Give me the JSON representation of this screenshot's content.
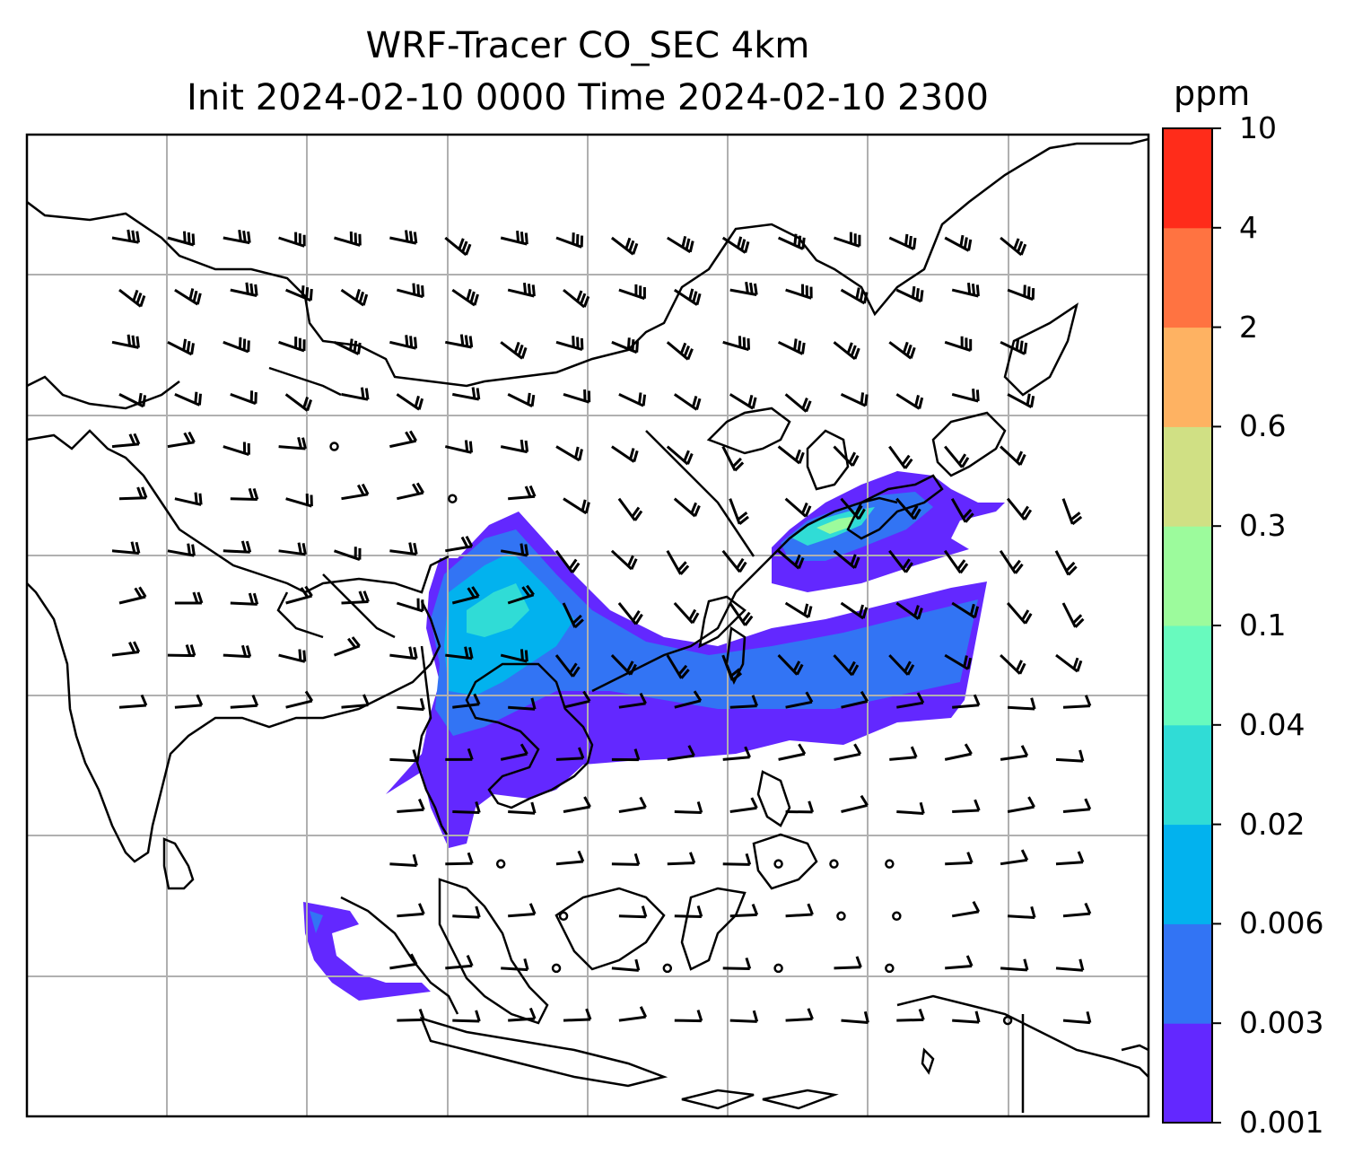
{
  "title": {
    "line1": "WRF-Tracer CO_SEC 4km",
    "line2": "Init 2024-02-10 0000 Time 2024-02-10 2300"
  },
  "colorbar": {
    "unit": "ppm",
    "levels": [
      "0.001",
      "0.003",
      "0.006",
      "0.02",
      "0.04",
      "0.1",
      "0.3",
      "0.6",
      "2",
      "4",
      "10"
    ],
    "colors": [
      "#6328ff",
      "#3274f4",
      "#02b2ee",
      "#30dcd6",
      "#68fabe",
      "#9cfb9c",
      "#d0e084",
      "#feb262",
      "#ff7341",
      "#ff2c1a"
    ]
  },
  "map": {
    "projection": "lat-lon",
    "gridlines": true,
    "gridline_color": "#b0b0b0",
    "coastline_color": "#000000",
    "layers": [
      "coastlines",
      "borders",
      "wind-barbs",
      "co-tracer-shading"
    ]
  }
}
